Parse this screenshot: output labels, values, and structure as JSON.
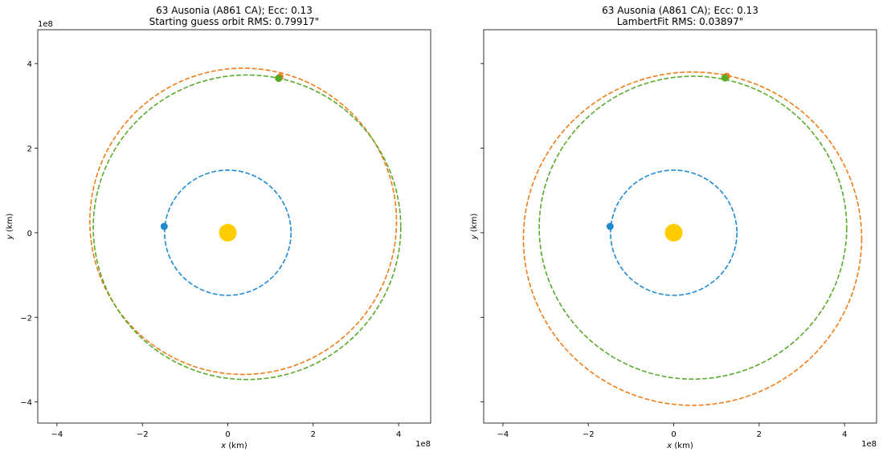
{
  "chart_data": [
    {
      "type": "line",
      "title_line1": "63 Ausonia (A861 CA); Ecc: 0.13",
      "title_line2": "Starting guess orbit RMS: 0.79917\"",
      "xlabel_var": "x",
      "xlabel_unit": " (km)",
      "ylabel_var": "y",
      "ylabel_unit": " (km)",
      "scale_label_x": "1e8",
      "scale_label_y": "1e8",
      "xlim": [
        -4.45,
        4.75
      ],
      "ylim": [
        -4.5,
        4.8
      ],
      "xticks": [
        -4,
        -2,
        0,
        2,
        4
      ],
      "xtick_labels": [
        "−4",
        "−2",
        "0",
        "2",
        "4"
      ],
      "yticks": [
        -4,
        -2,
        0,
        2,
        4
      ],
      "ytick_labels": [
        "−4",
        "−2",
        "0",
        "2",
        "4"
      ],
      "sun": {
        "x": 0,
        "y": 0,
        "color": "#ffcc00"
      },
      "orbits": [
        {
          "cx": 0,
          "cy": 0,
          "rx": 1.48,
          "ry": 1.48,
          "color": "#1f8ad1"
        },
        {
          "cx": 0.36,
          "cy": 0.27,
          "rx": 3.59,
          "ry": 3.62,
          "color": "#f07d1a"
        },
        {
          "cx": 0.45,
          "cy": 0.13,
          "rx": 3.6,
          "ry": 3.6,
          "color": "#5aaa2a"
        }
      ],
      "markers": [
        {
          "x": -1.49,
          "y": 0.15,
          "color": "#1f8ad1"
        },
        {
          "x": 1.22,
          "y": 3.68,
          "color": "#f07d1a"
        },
        {
          "x": 1.19,
          "y": 3.65,
          "color": "#5aaa2a"
        }
      ]
    },
    {
      "type": "line",
      "title_line1": "63 Ausonia (A861 CA); Ecc: 0.13",
      "title_line2": "LambertFit RMS: 0.03897\"",
      "xlabel_var": "x",
      "xlabel_unit": " (km)",
      "ylabel_var": "y",
      "ylabel_unit": " (km)",
      "scale_label_x": "1e8",
      "scale_label_y": "",
      "xlim": [
        -4.45,
        4.75
      ],
      "ylim": [
        -4.5,
        4.8
      ],
      "xticks": [
        -4,
        -2,
        0,
        2,
        4
      ],
      "xtick_labels": [
        "−4",
        "−2",
        "0",
        "2",
        "4"
      ],
      "yticks": [
        -4,
        -2,
        0,
        2,
        4
      ],
      "ytick_labels": [
        "",
        "",
        "",
        "",
        ""
      ],
      "sun": {
        "x": 0,
        "y": 0,
        "color": "#ffcc00"
      },
      "orbits": [
        {
          "cx": 0,
          "cy": 0,
          "rx": 1.48,
          "ry": 1.48,
          "color": "#1f8ad1"
        },
        {
          "cx": 0.44,
          "cy": -0.14,
          "rx": 3.96,
          "ry": 3.94,
          "color": "#f07d1a"
        },
        {
          "cx": 0.45,
          "cy": 0.12,
          "rx": 3.6,
          "ry": 3.58,
          "color": "#5aaa2a"
        }
      ],
      "markers": [
        {
          "x": -1.49,
          "y": 0.15,
          "color": "#1f8ad1"
        },
        {
          "x": 1.24,
          "y": 3.7,
          "color": "#f07d1a"
        },
        {
          "x": 1.2,
          "y": 3.66,
          "color": "#5aaa2a"
        }
      ]
    }
  ]
}
